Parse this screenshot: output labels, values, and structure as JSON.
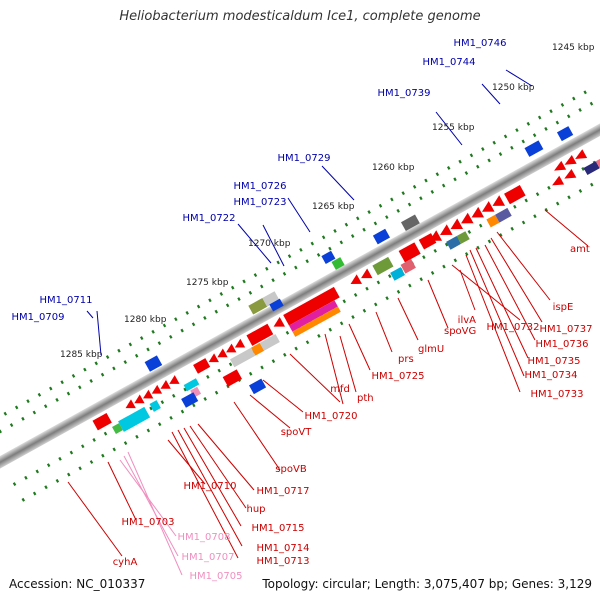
{
  "title": "Heliobacterium modesticaldum Ice1, complete genome",
  "footer": {
    "accession": "Accession: NC_010337",
    "summary": "Topology: circular; Length: 3,075,407 bp; Genes: 3,129"
  },
  "colors": {
    "backbone": "#9a9a9a",
    "ticks": "#1f7a1f",
    "gene_red": "#ee0000",
    "label_blue": "#0000aa",
    "label_red": "#cc0000",
    "label_pink": "#f08fc0",
    "blue_gene": "#0a3fd8"
  },
  "kbp_ticks": [
    "1245 kbp",
    "1250 kbp",
    "1255 kbp",
    "1260 kbp",
    "1265 kbp",
    "1270 kbp",
    "1275 kbp",
    "1280 kbp",
    "1285 kbp"
  ],
  "outer_labels": [
    "HM1_0746",
    "HM1_0744",
    "HM1_0739",
    "HM1_0729",
    "HM1_0726",
    "HM1_0723",
    "HM1_0722",
    "HM1_0711",
    "HM1_0709"
  ],
  "inner_labels_red": [
    "amt",
    "ispE",
    "HM1_0737",
    "HM1_0736",
    "HM1_0735",
    "HM1_0734",
    "HM1_0733",
    "HM1_0732",
    "ilvA",
    "spoVG",
    "glmU",
    "prs",
    "HM1_0725",
    "pth",
    "mfd",
    "HM1_0720",
    "spoVT",
    "spoVB",
    "HM1_0717",
    "HM1_0710",
    "hup",
    "HM1_0715",
    "HM1_0714",
    "HM1_0713",
    "HM1_0703",
    "cyhA"
  ],
  "inner_labels_pink": [
    "HM1_0708",
    "HM1_0707",
    "HM1_0705"
  ]
}
